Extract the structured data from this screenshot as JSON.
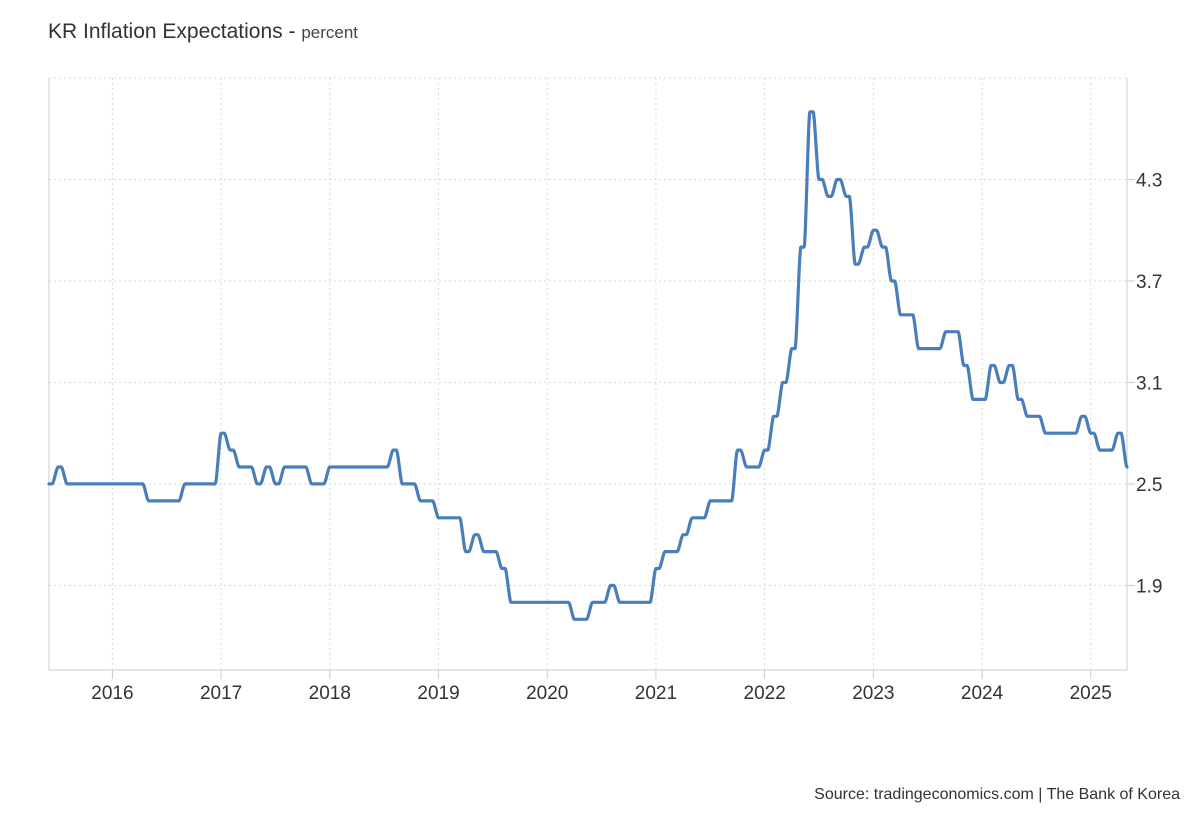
{
  "title": "KR Inflation Expectations",
  "unit": "percent",
  "source": "Source: tradingeconomics.com | The Bank of Korea",
  "colors": {
    "line": "#4a7ebb",
    "grid": "#d9d9d9",
    "axis": "#cccccc",
    "text": "#333333"
  },
  "chart_data": {
    "type": "line",
    "title": "KR Inflation Expectations",
    "subtitle": "percent",
    "xlabel": "",
    "ylabel": "",
    "x_ticks": [
      "2016",
      "2017",
      "2018",
      "2019",
      "2020",
      "2021",
      "2022",
      "2023",
      "2024",
      "2025"
    ],
    "y_ticks": [
      1.9,
      2.5,
      3.1,
      3.7,
      4.3
    ],
    "xlim": [
      "2015-06-01",
      "2025-05-01"
    ],
    "ylim": [
      1.4,
      4.9
    ],
    "grid": true,
    "y_axis_position": "right",
    "series": [
      {
        "x": [
          "2015-06",
          "2015-07",
          "2015-08",
          "2015-09",
          "2015-10",
          "2015-11",
          "2015-12",
          "2016-01",
          "2016-02",
          "2016-03",
          "2016-04",
          "2016-05",
          "2016-06",
          "2016-07",
          "2016-08",
          "2016-09",
          "2016-10",
          "2016-11",
          "2016-12",
          "2017-01",
          "2017-02",
          "2017-03",
          "2017-04",
          "2017-05",
          "2017-06",
          "2017-07",
          "2017-08",
          "2017-09",
          "2017-10",
          "2017-11",
          "2017-12",
          "2018-01",
          "2018-02",
          "2018-03",
          "2018-04",
          "2018-05",
          "2018-06",
          "2018-07",
          "2018-08",
          "2018-09",
          "2018-10",
          "2018-11",
          "2018-12",
          "2019-01",
          "2019-02",
          "2019-03",
          "2019-04",
          "2019-05",
          "2019-06",
          "2019-07",
          "2019-08",
          "2019-09",
          "2019-10",
          "2019-11",
          "2019-12",
          "2020-01",
          "2020-02",
          "2020-03",
          "2020-04",
          "2020-05",
          "2020-06",
          "2020-07",
          "2020-08",
          "2020-09",
          "2020-10",
          "2020-11",
          "2020-12",
          "2021-01",
          "2021-02",
          "2021-03",
          "2021-04",
          "2021-05",
          "2021-06",
          "2021-07",
          "2021-08",
          "2021-09",
          "2021-10",
          "2021-11",
          "2021-12",
          "2022-01",
          "2022-02",
          "2022-03",
          "2022-04",
          "2022-05",
          "2022-06",
          "2022-07",
          "2022-08",
          "2022-09",
          "2022-10",
          "2022-11",
          "2022-12",
          "2023-01",
          "2023-02",
          "2023-03",
          "2023-04",
          "2023-05",
          "2023-06",
          "2023-07",
          "2023-08",
          "2023-09",
          "2023-10",
          "2023-11",
          "2023-12",
          "2024-01",
          "2024-02",
          "2024-03",
          "2024-04",
          "2024-05",
          "2024-06",
          "2024-07",
          "2024-08",
          "2024-09",
          "2024-10",
          "2024-11",
          "2024-12",
          "2025-01",
          "2025-02",
          "2025-03",
          "2025-04",
          "2025-05"
        ],
        "values": [
          2.5,
          2.6,
          2.5,
          2.5,
          2.5,
          2.5,
          2.5,
          2.5,
          2.5,
          2.5,
          2.5,
          2.4,
          2.4,
          2.4,
          2.4,
          2.5,
          2.5,
          2.5,
          2.5,
          2.8,
          2.7,
          2.6,
          2.6,
          2.5,
          2.6,
          2.5,
          2.6,
          2.6,
          2.6,
          2.5,
          2.5,
          2.6,
          2.6,
          2.6,
          2.6,
          2.6,
          2.6,
          2.6,
          2.7,
          2.5,
          2.5,
          2.4,
          2.4,
          2.3,
          2.3,
          2.3,
          2.1,
          2.2,
          2.1,
          2.1,
          2.0,
          1.8,
          1.8,
          1.8,
          1.8,
          1.8,
          1.8,
          1.8,
          1.7,
          1.7,
          1.8,
          1.8,
          1.9,
          1.8,
          1.8,
          1.8,
          1.8,
          2.0,
          2.1,
          2.1,
          2.2,
          2.3,
          2.3,
          2.4,
          2.4,
          2.4,
          2.7,
          2.6,
          2.6,
          2.7,
          2.9,
          3.1,
          3.3,
          3.9,
          4.7,
          4.3,
          4.2,
          4.3,
          4.2,
          3.8,
          3.9,
          4.0,
          3.9,
          3.7,
          3.5,
          3.5,
          3.3,
          3.3,
          3.3,
          3.4,
          3.4,
          3.2,
          3.0,
          3.0,
          3.2,
          3.1,
          3.2,
          3.0,
          2.9,
          2.9,
          2.8,
          2.8,
          2.8,
          2.8,
          2.9,
          2.8,
          2.7,
          2.7,
          2.8,
          2.6
        ]
      }
    ]
  }
}
